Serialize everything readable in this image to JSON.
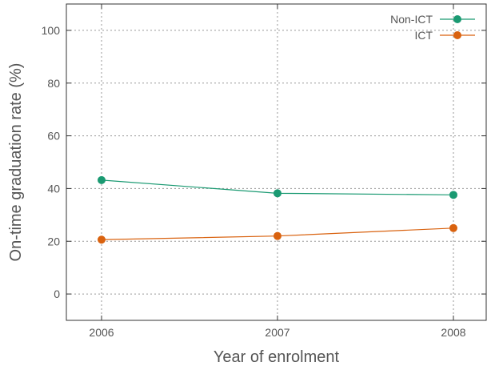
{
  "chart_data": {
    "type": "line",
    "title": "",
    "xlabel": "Year of enrolment",
    "ylabel": "On-time graduation rate (%)",
    "x": [
      "2006",
      "2007",
      "2008"
    ],
    "ylim": [
      -10,
      110
    ],
    "yticks": [
      0,
      20,
      40,
      60,
      80,
      100
    ],
    "grid": true,
    "legend_position": "top-right",
    "series": [
      {
        "name": "Non-ICT",
        "color": "#1a9a72",
        "values": [
          43.2,
          38.2,
          37.6
        ]
      },
      {
        "name": "ICT",
        "color": "#d9620f",
        "values": [
          20.6,
          22.0,
          25.0
        ]
      }
    ]
  }
}
